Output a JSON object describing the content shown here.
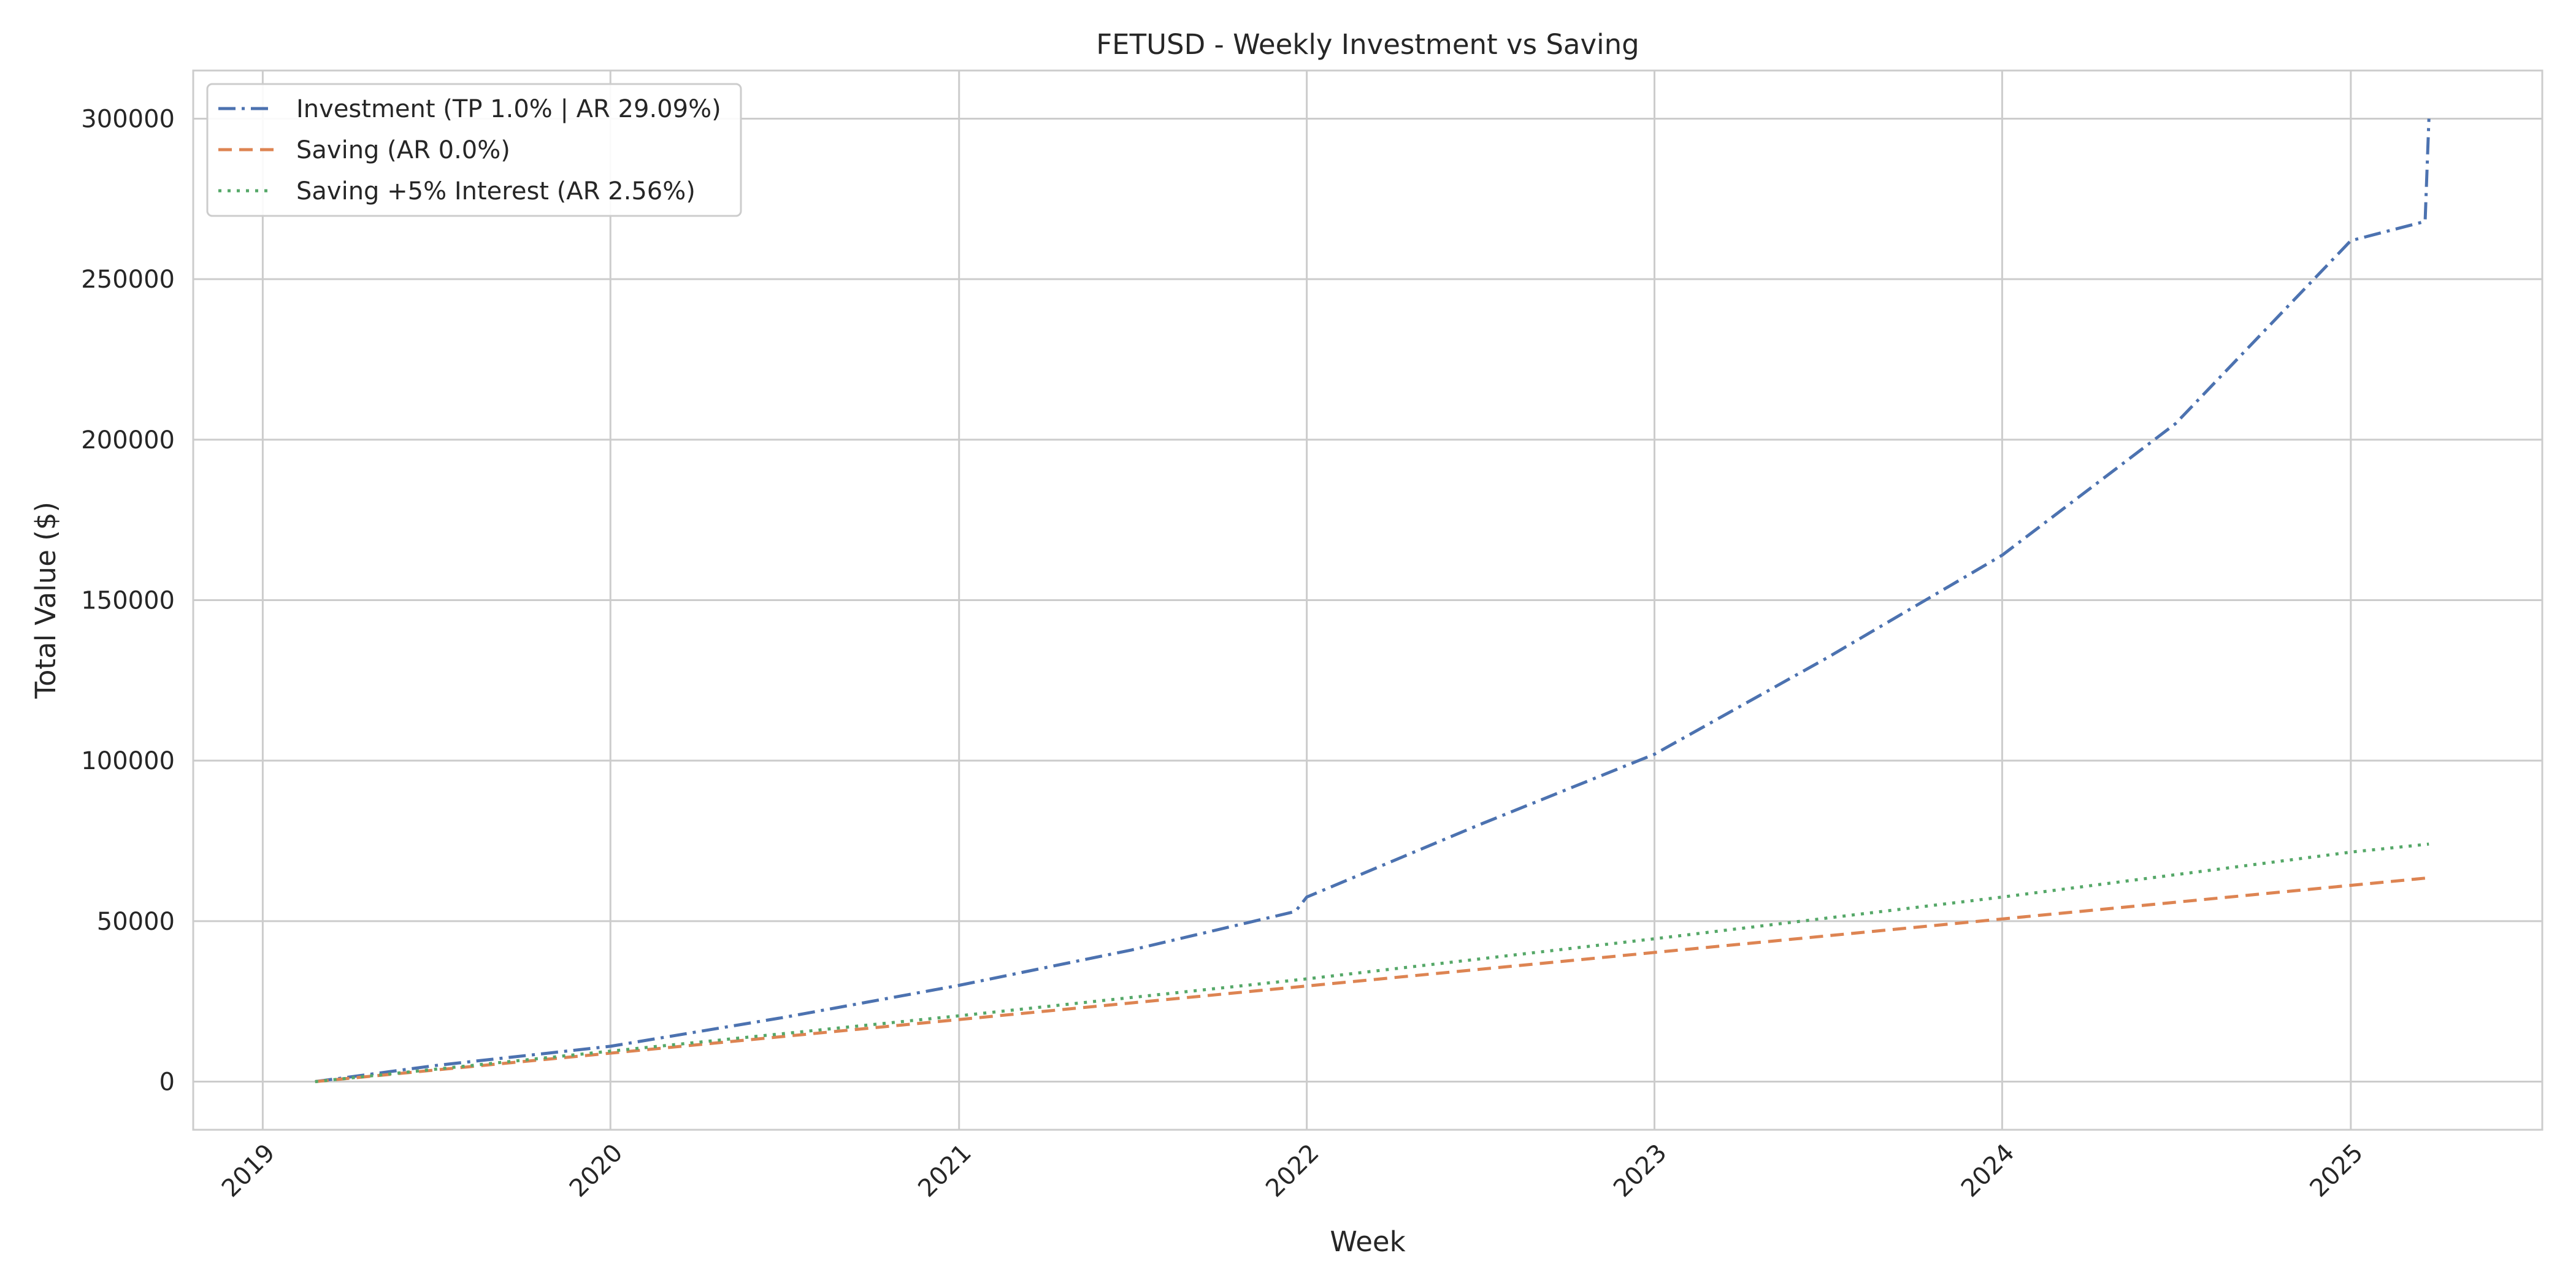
{
  "chart_data": {
    "type": "line",
    "title": "FETUSD - Weekly Investment vs Saving",
    "xlabel": "Week",
    "ylabel": "Total Value ($)",
    "xlim": [
      "2018-10-20",
      "2025-07-21"
    ],
    "ylim": [
      -15000,
      315000
    ],
    "x_ticks": [
      "2019",
      "2020",
      "2021",
      "2022",
      "2023",
      "2024",
      "2025"
    ],
    "y_ticks": [
      0,
      50000,
      100000,
      150000,
      200000,
      250000,
      300000
    ],
    "grid": true,
    "legend_position": "top-left",
    "series": [
      {
        "name": "Investment (TP 1.0% | AR 29.09%)",
        "color": "#4c72b0",
        "dash": "dashdot",
        "x": [
          "2019-02-25",
          "2019-07-01",
          "2020-01-01",
          "2020-07-01",
          "2021-01-01",
          "2021-07-01",
          "2021-12-20",
          "2022-01-01",
          "2022-07-01",
          "2023-01-01",
          "2023-07-01",
          "2024-01-01",
          "2024-07-01",
          "2025-01-01",
          "2025-03-20",
          "2025-03-24"
        ],
        "y": [
          0,
          5000,
          11000,
          20000,
          30000,
          41000,
          53000,
          57500,
          80000,
          102000,
          132000,
          164000,
          205000,
          262000,
          268000,
          300000
        ]
      },
      {
        "name": "Saving (AR 0.0%)",
        "color": "#dd8452",
        "dash": "dashed",
        "x": [
          "2019-02-25",
          "2025-03-24"
        ],
        "y": [
          0,
          63500
        ]
      },
      {
        "name": "Saving +5% Interest (AR 2.56%)",
        "color": "#55a868",
        "dash": "dotted",
        "x": [
          "2019-02-25",
          "2020-01-01",
          "2021-01-01",
          "2022-01-01",
          "2023-01-01",
          "2024-01-01",
          "2025-01-01",
          "2025-03-24"
        ],
        "y": [
          0,
          9500,
          20500,
          32000,
          44500,
          57500,
          71500,
          74000
        ]
      }
    ]
  }
}
